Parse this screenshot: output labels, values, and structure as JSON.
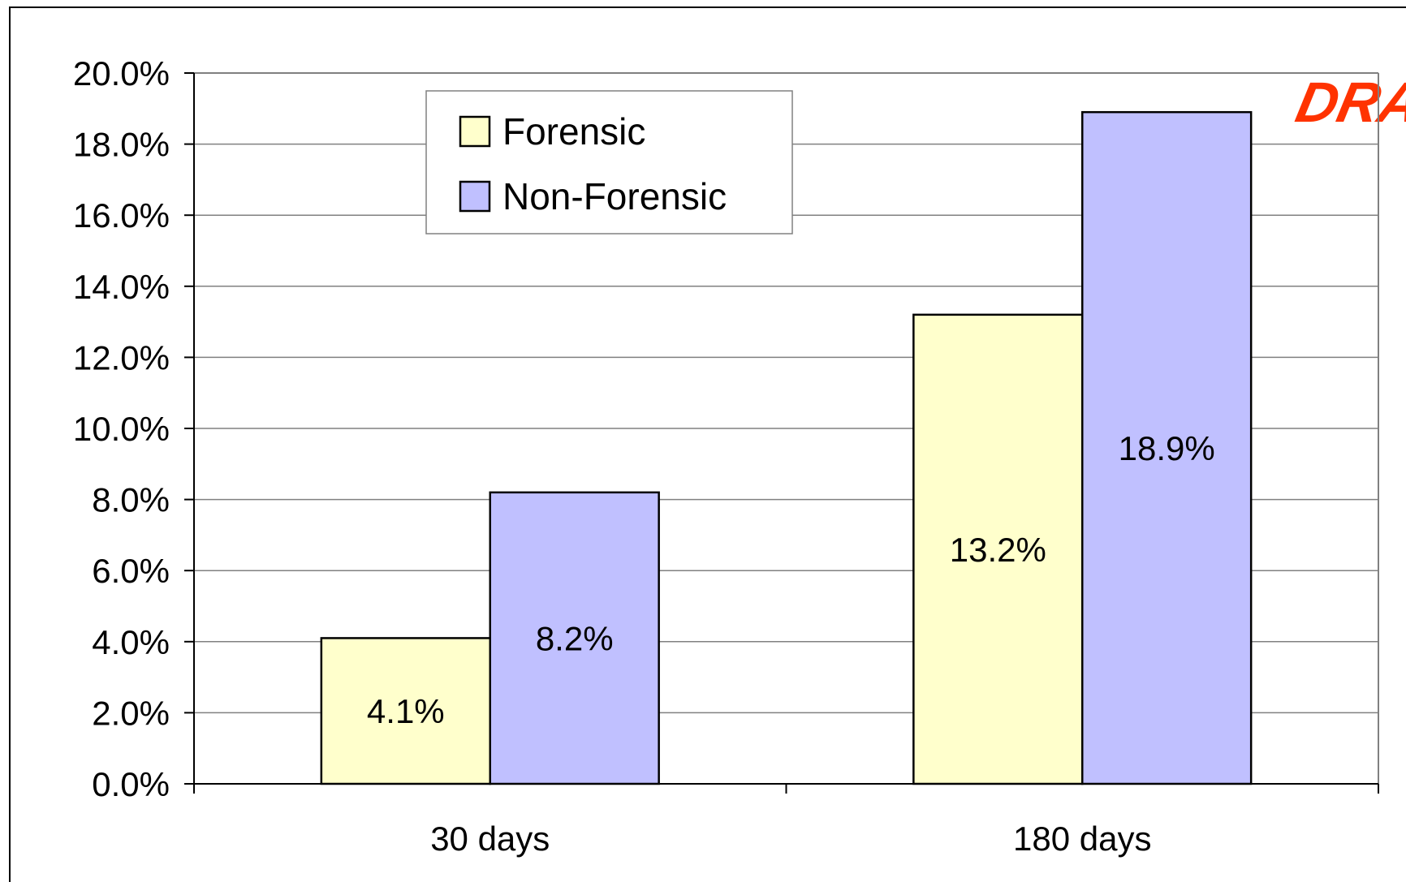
{
  "chart_data": {
    "type": "bar",
    "title": "",
    "xlabel": "",
    "ylabel": "",
    "categories": [
      "30 days",
      "180 days"
    ],
    "series": [
      {
        "name": "Forensic",
        "values": [
          4.1,
          13.2
        ],
        "labels": [
          "4.1%",
          "13.2%"
        ],
        "color": "#ffffcc"
      },
      {
        "name": "Non-Forensic",
        "values": [
          8.2,
          18.9
        ],
        "labels": [
          "8.2%",
          "18.9%"
        ],
        "color": "#c0c0ff"
      }
    ],
    "ylim": [
      0,
      20
    ],
    "yticks": [
      0,
      2,
      4,
      6,
      8,
      10,
      12,
      14,
      16,
      18,
      20
    ],
    "ytick_labels": [
      "0.0%",
      "2.0%",
      "4.0%",
      "6.0%",
      "8.0%",
      "10.0%",
      "12.0%",
      "14.0%",
      "16.0%",
      "18.0%",
      "20.0%"
    ],
    "grid": true,
    "legend_position": "top-left",
    "watermark": "DRAFT"
  }
}
